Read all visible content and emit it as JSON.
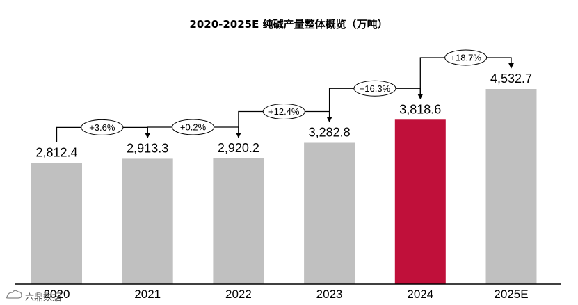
{
  "chart_data": {
    "type": "bar",
    "title": "2020-2025E 纯碱产量整体概览（万吨）",
    "categories": [
      "2020",
      "2021",
      "2022",
      "2023",
      "2024",
      "2025E"
    ],
    "values": [
      2812.4,
      2913.3,
      2920.2,
      3282.8,
      3818.6,
      4532.7
    ],
    "value_labels": [
      "2,812.4",
      "2,913.3",
      "2,920.2",
      "3,282.8",
      "3,818.6",
      "4,532.7"
    ],
    "growth_labels": [
      "+3.6%",
      "+0.2%",
      "+12.4%",
      "+16.3%",
      "+18.7%"
    ],
    "highlight_category": "2024",
    "colors": {
      "bar": "#c0c0c0",
      "highlight": "#c0103a",
      "axis": "#000000"
    },
    "xlabel": "",
    "ylabel": "",
    "grid": false,
    "legend": "none"
  },
  "watermark": {
    "text": "六鼎数据",
    "icon": "cloud-logo-icon"
  }
}
